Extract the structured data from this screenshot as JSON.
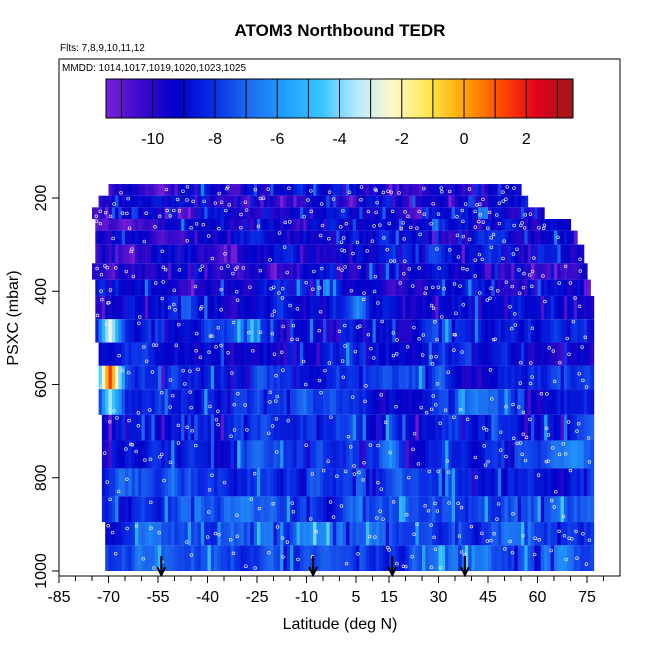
{
  "chart_data": {
    "type": "heatmap",
    "title": "ATOM3 Northbound TEDR",
    "subtitle_flights": "Flts: 7,8,9,10,11,12",
    "subtitle_dates": "MMDD: 1014,1017,1019,1020,1023,1025",
    "xlabel": "Latitude (deg N)",
    "ylabel": "PSXC (mbar)",
    "xlim": [
      -85,
      85
    ],
    "ylim": [
      1000,
      100
    ],
    "x_ticks": [
      "-85",
      "-70",
      "-55",
      "-40",
      "-25",
      "-10",
      "5",
      "15",
      "30",
      "45",
      "60",
      "75"
    ],
    "y_ticks": [
      "200",
      "400",
      "600",
      "800",
      "1000"
    ],
    "colorbar": {
      "range": [
        -11.5,
        3.5
      ],
      "tick_labels": [
        "-10",
        "-8",
        "-6",
        "-4",
        "-2",
        "0",
        "2"
      ],
      "colors": [
        "#7a1fd6",
        "#3a0acb",
        "#0000c8",
        "#0a2ee6",
        "#1d6cf0",
        "#1ea0ff",
        "#37c6ff",
        "#b9eaff",
        "#fff8c8",
        "#ffe64a",
        "#ffa300",
        "#ff4a00",
        "#e0001c",
        "#9e1a1a"
      ]
    },
    "arrows_latitude": [
      -54,
      -8,
      16,
      38
    ],
    "pressure_bands_mbar": [
      {
        "p_top": 170,
        "p_bottom": 195,
        "lat_from": -70,
        "lat_to": 55
      },
      {
        "p_top": 195,
        "p_bottom": 220,
        "lat_from": -73,
        "lat_to": 57
      },
      {
        "p_top": 220,
        "p_bottom": 245,
        "lat_from": -75,
        "lat_to": 62
      },
      {
        "p_top": 245,
        "p_bottom": 270,
        "lat_from": -74,
        "lat_to": 70
      },
      {
        "p_top": 270,
        "p_bottom": 300,
        "lat_from": -74,
        "lat_to": 72
      },
      {
        "p_top": 300,
        "p_bottom": 340,
        "lat_from": -74,
        "lat_to": 74
      },
      {
        "p_top": 340,
        "p_bottom": 375,
        "lat_from": -75,
        "lat_to": 75
      },
      {
        "p_top": 375,
        "p_bottom": 410,
        "lat_from": -74,
        "lat_to": 76
      },
      {
        "p_top": 410,
        "p_bottom": 460,
        "lat_from": -74,
        "lat_to": 77
      },
      {
        "p_top": 460,
        "p_bottom": 510,
        "lat_from": -74,
        "lat_to": 77
      },
      {
        "p_top": 510,
        "p_bottom": 560,
        "lat_from": -73,
        "lat_to": 77
      },
      {
        "p_top": 560,
        "p_bottom": 610,
        "lat_from": -73,
        "lat_to": 77
      },
      {
        "p_top": 610,
        "p_bottom": 665,
        "lat_from": -73,
        "lat_to": 77
      },
      {
        "p_top": 665,
        "p_bottom": 720,
        "lat_from": -72,
        "lat_to": 77
      },
      {
        "p_top": 720,
        "p_bottom": 780,
        "lat_from": -72,
        "lat_to": 77
      },
      {
        "p_top": 780,
        "p_bottom": 840,
        "lat_from": -72,
        "lat_to": 77
      },
      {
        "p_top": 840,
        "p_bottom": 895,
        "lat_from": -72,
        "lat_to": 77
      },
      {
        "p_top": 895,
        "p_bottom": 945,
        "lat_from": -71,
        "lat_to": 77
      },
      {
        "p_top": 945,
        "p_bottom": 1000,
        "lat_from": -71,
        "lat_to": 77
      }
    ],
    "features": [
      {
        "lat": -70,
        "p_top": 460,
        "p_bottom": 510,
        "value": -2.5
      },
      {
        "lat": -70,
        "p_top": 560,
        "p_bottom": 610,
        "value": 1.5
      },
      {
        "lat": -70,
        "p_top": 610,
        "p_bottom": 665,
        "value": -3.5
      },
      {
        "lat": 5,
        "p_top": 400,
        "p_bottom": 460,
        "value": -6
      },
      {
        "lat": 15,
        "p_top": 720,
        "p_bottom": 780,
        "value": -6
      },
      {
        "lat": 50,
        "p_top": 880,
        "p_bottom": 960,
        "value": -6.5
      }
    ]
  }
}
